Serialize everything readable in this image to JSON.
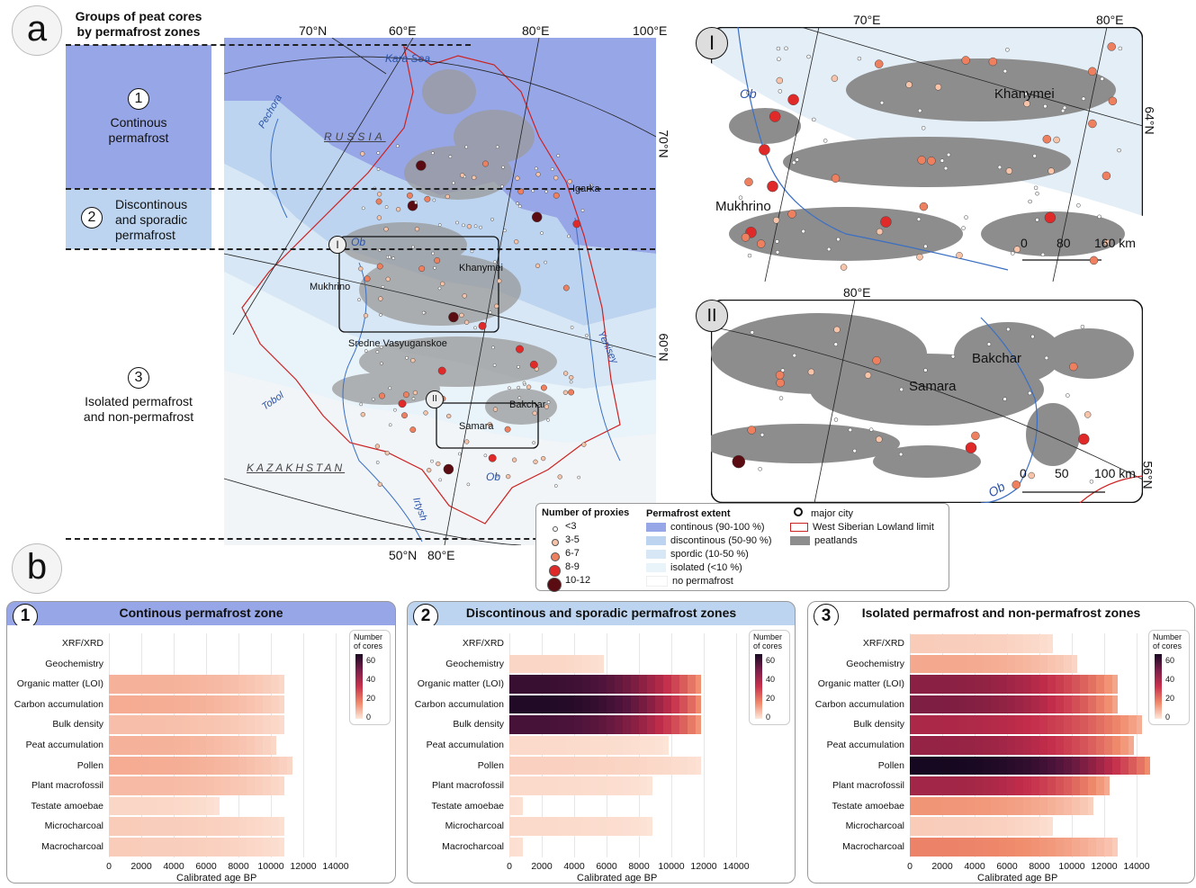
{
  "panel_a": {
    "letter": "a",
    "groups_title_line1": "Groups of peat cores",
    "groups_title_line2": "by permafrost zones",
    "zones": [
      {
        "num": "1",
        "line1": "Continous",
        "line2": "permafrost",
        "line3": ""
      },
      {
        "num": "2",
        "line1": "Discontinous",
        "line2": "and sporadic",
        "line3": "permafrost"
      },
      {
        "num": "3",
        "line1": "Isolated permafrost",
        "line2": "and non-permafrost",
        "line3": ""
      }
    ],
    "map_labels": {
      "lat_70N_top": "70°N",
      "lon_60E": "60°E",
      "lon_80E_top": "80°E",
      "lon_100E": "100°E",
      "lat_70N_right": "70°N",
      "lat_60N_right": "60°N",
      "lat_50N": "50°N",
      "lon_80E_bottom": "80°E",
      "kara_sea": "Kara Sea",
      "russia": "RUSSIA",
      "kazakhstan": "KAZAKHSTAN",
      "pechora": "Pechora",
      "ob": "Ob",
      "ob2": "Ob",
      "tobol": "Tobol",
      "irtysh": "Irtysh",
      "yenisey": "Yenisey",
      "igarka": "Igarka",
      "khanymei": "Khanymei",
      "mukhrino": "Mukhrino",
      "sredne": "Sredne Vasyuganskoe",
      "bakchar": "Bakchar",
      "samara": "Samara",
      "inset1": "I",
      "inset2": "II"
    },
    "inset_I": {
      "label": "I",
      "lon_70E": "70°E",
      "lon_80E": "80°E",
      "lat_64N": "64°N",
      "khanymei": "Khanymei",
      "mukhrino": "Mukhrino",
      "ob": "Ob",
      "scale": [
        "0",
        "80",
        "160 km"
      ]
    },
    "inset_II": {
      "label": "II",
      "lon_80E": "80°E",
      "lat_56N": "56°N",
      "bakchar": "Bakchar",
      "samara": "Samara",
      "ob": "Ob",
      "scale": [
        "0",
        "50",
        "100 km"
      ]
    },
    "legend": {
      "proxies_title": "Number of proxies",
      "proxies": [
        "<3",
        "3-5",
        "6-7",
        "8-9",
        "10-12"
      ],
      "permafrost_title": "Permafrost extent",
      "permafrost": [
        {
          "label": "continous (90-100 %)",
          "color": "#97a6e6"
        },
        {
          "label": "discontinous (50-90 %)",
          "color": "#bcd4ef"
        },
        {
          "label": "spordic (10-50 %)",
          "color": "#d8e7f5"
        },
        {
          "label": "isolated (<10 %)",
          "color": "#e9f3fa"
        },
        {
          "label": "no permafrost",
          "color": "#ffffff"
        }
      ],
      "major_city": "major city",
      "wsl_limit": "West Siberian Lowland limit",
      "peatlands": "peatlands"
    }
  },
  "panel_b": {
    "letter": "b",
    "x_ticks": [
      "0",
      "2000",
      "4000",
      "6000",
      "8000",
      "10000",
      "12000",
      "14000"
    ],
    "x_label": "Calibrated age BP",
    "colorbar_title": "Number of cores",
    "colorbar_ticks": [
      "60",
      "40",
      "20",
      "0"
    ],
    "rows": [
      "XRF/XRD",
      "Geochemistry",
      "Organic matter (LOI)",
      "Carbon accumulation",
      "Bulk density",
      "Peat accumulation",
      "Pollen",
      "Plant macrofossil",
      "Testate amoebae",
      "Microcharcoal",
      "Macrocharcoal"
    ],
    "panels": [
      {
        "num": "1",
        "title": "Continous permafrost zone",
        "header_color": "#97a6e6",
        "max_age": [
          0,
          0,
          10800,
          10800,
          10800,
          10300,
          11300,
          10800,
          6800,
          10800,
          10800
        ],
        "intensity": [
          0,
          0,
          12,
          13,
          9,
          12,
          13,
          10,
          4,
          6,
          6
        ]
      },
      {
        "num": "2",
        "title": "Discontinous and sporadic permafrost zones",
        "header_color": "#bcd4ef",
        "max_age": [
          0,
          5800,
          11800,
          11800,
          11800,
          9800,
          11800,
          8800,
          800,
          8800,
          800
        ],
        "intensity": [
          0,
          4,
          65,
          70,
          62,
          3,
          5,
          3,
          2,
          3,
          2
        ]
      },
      {
        "num": "3",
        "title": "Isolated permafrost and non-permafrost zones",
        "header_color": "#ffffff",
        "max_age": [
          8800,
          10300,
          12800,
          12800,
          14300,
          13800,
          14800,
          12300,
          11300,
          8800,
          12800
        ],
        "intensity": [
          6,
          14,
          50,
          52,
          44,
          48,
          72,
          46,
          18,
          6,
          22
        ]
      }
    ]
  }
}
